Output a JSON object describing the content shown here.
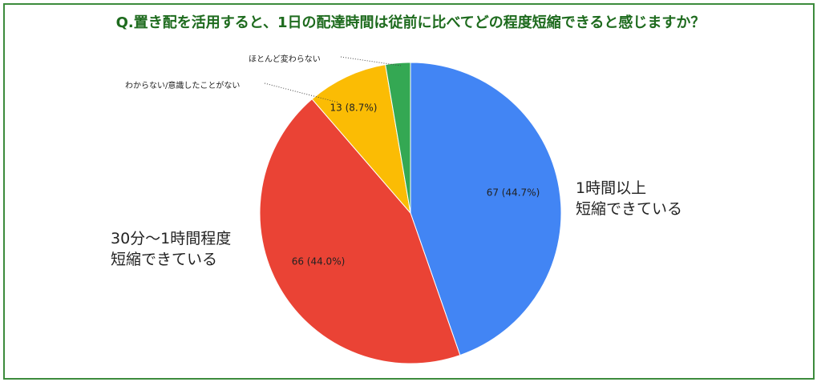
{
  "chart_data": {
    "type": "pie",
    "title": "Q.置き配を活用すると、1日の配達時間は従前に比べてどの程度短縮できると感じますか？",
    "categories": [
      "1時間以上\n短縮できている",
      "30分～1時間程度\n短縮できている",
      "わからない/意識したことがない",
      "ほとんど変わらない"
    ],
    "values": [
      67,
      66,
      13,
      4
    ],
    "value_labels": [
      "67 (44.7%)",
      "66 (44.0%)",
      "13 (8.7%)",
      null
    ],
    "colors": [
      "#4285f4",
      "#ea4335",
      "#fbbc04",
      "#34a853"
    ]
  }
}
